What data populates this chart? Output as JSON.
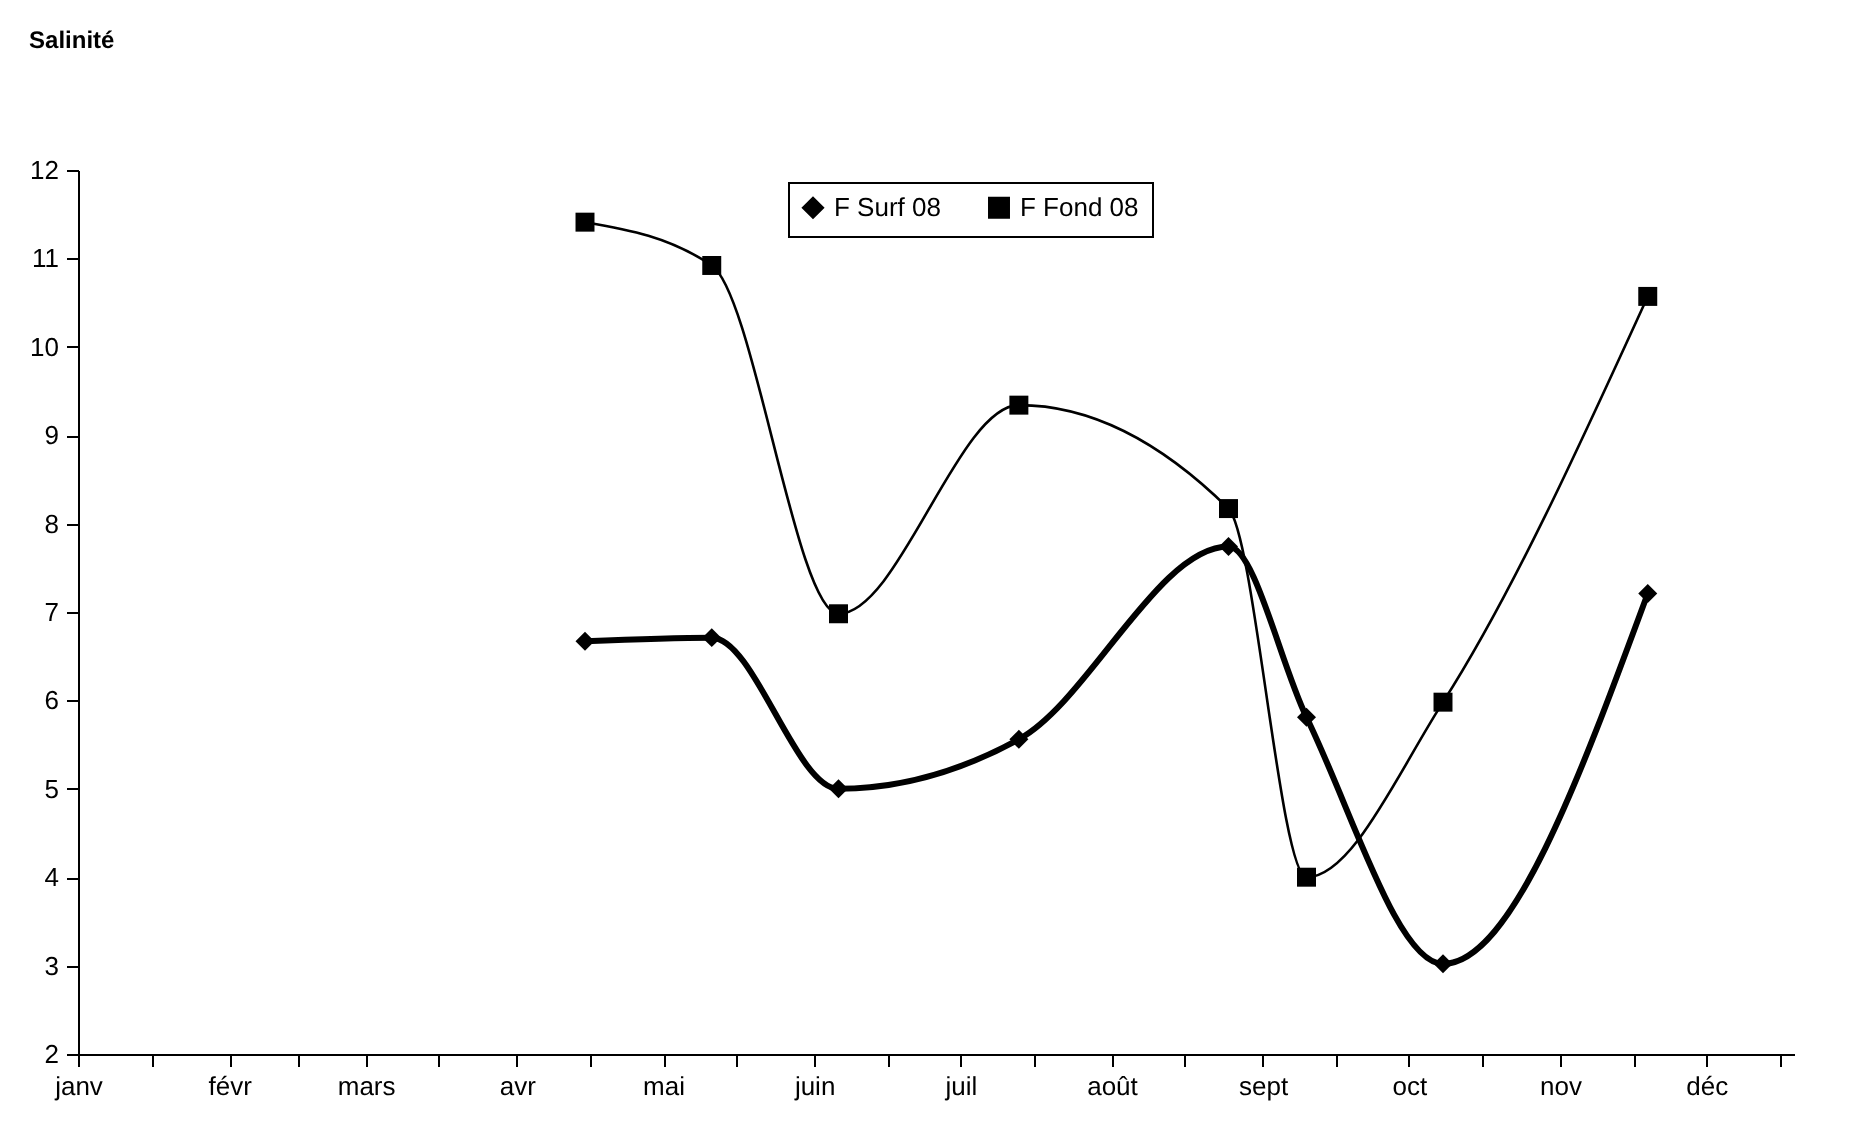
{
  "chart_data": {
    "type": "line",
    "title": "Salinité",
    "x": [
      "--04-15",
      "--05-11",
      "--06-06",
      "--07-13",
      "--08-25",
      "--09-10",
      "--10-08",
      "--11-19"
    ],
    "series": [
      {
        "name": "F Surf 08",
        "color": "#000000",
        "marker": "diamond",
        "values": [
          6.67,
          6.71,
          5.0,
          5.56,
          7.74,
          5.81,
          3.02,
          7.21
        ]
      },
      {
        "name": "F Fond 08",
        "color": "#000000",
        "marker": "square",
        "values": [
          11.41,
          10.92,
          6.98,
          9.34,
          8.17,
          4.0,
          5.98,
          10.57
        ]
      }
    ],
    "xlim": [
      "--01-01",
      "--12-19"
    ],
    "xticks": [
      {
        "value": "--01-01",
        "label": "janv"
      },
      {
        "value": "--01-16",
        "label": null
      },
      {
        "value": "--02-01",
        "label": "févr"
      },
      {
        "value": "--02-15",
        "label": null
      },
      {
        "value": "--03-01",
        "label": "mars"
      },
      {
        "value": "--03-16",
        "label": null
      },
      {
        "value": "--04-01",
        "label": "avr"
      },
      {
        "value": "--04-16",
        "label": null
      },
      {
        "value": "--05-01",
        "label": "mai"
      },
      {
        "value": "--05-16",
        "label": null
      },
      {
        "value": "--06-01",
        "label": "juin"
      },
      {
        "value": "--06-16",
        "label": null
      },
      {
        "value": "--07-01",
        "label": "juil"
      },
      {
        "value": "--07-16",
        "label": null
      },
      {
        "value": "--08-01",
        "label": "août"
      },
      {
        "value": "--08-16",
        "label": null
      },
      {
        "value": "--09-01",
        "label": "sept"
      },
      {
        "value": "--09-16",
        "label": null
      },
      {
        "value": "--10-01",
        "label": "oct"
      },
      {
        "value": "--10-16",
        "label": null
      },
      {
        "value": "--11-01",
        "label": "nov"
      },
      {
        "value": "--11-16",
        "label": null
      },
      {
        "value": "--12-01",
        "label": "déc"
      },
      {
        "value": "--12-16",
        "label": null
      }
    ],
    "ylim": [
      2,
      12
    ],
    "yticks": [
      2,
      3,
      4,
      5,
      6,
      7,
      8,
      9,
      10,
      11,
      12
    ],
    "grid": false,
    "legend": "top",
    "line_style": "solid"
  }
}
